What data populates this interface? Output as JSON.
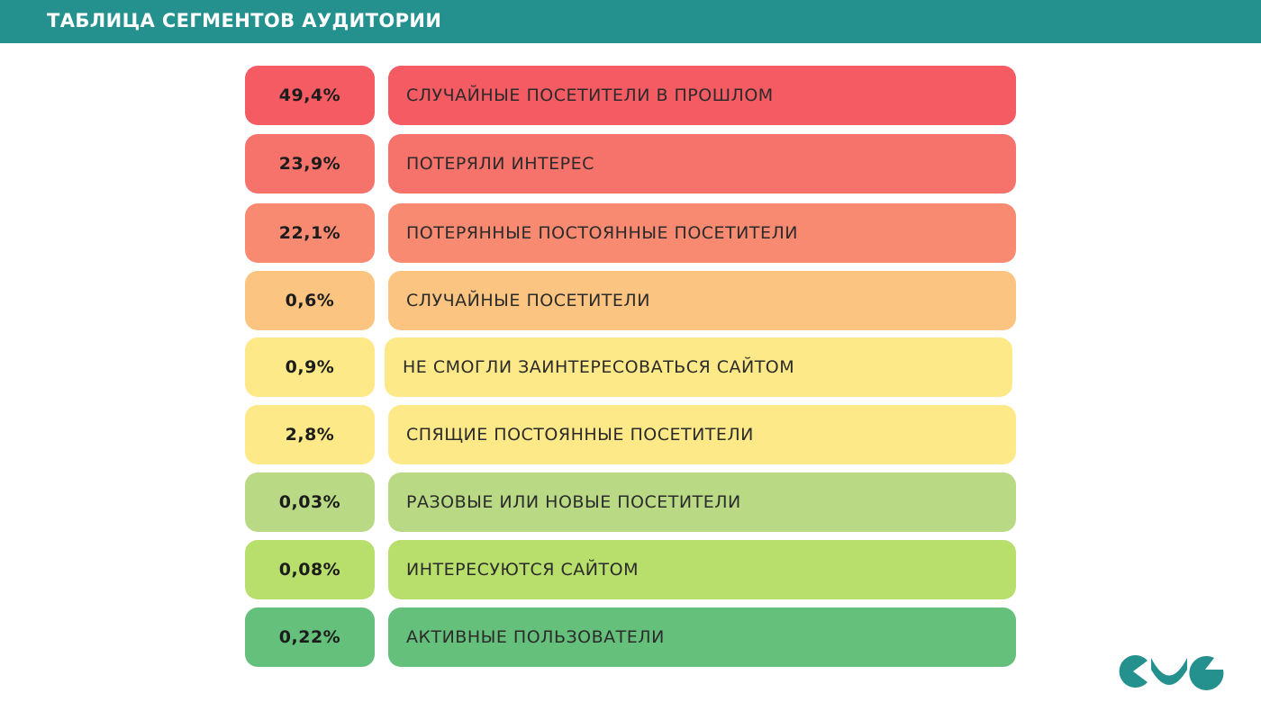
{
  "header": {
    "title": "ТАБЛИЦА СЕГМЕНТОВ АУДИТОРИИ",
    "background_color": "#24918f"
  },
  "logo": {
    "icon": "brand-logo",
    "color": "#24918f"
  },
  "chart_data": {
    "type": "table",
    "title": "ТАБЛИЦА СЕГМЕНТОВ АУДИТОРИИ",
    "rows": [
      {
        "value": "49,4%",
        "label": "СЛУЧАЙНЫЕ ПОСЕТИТЕЛИ В ПРОШЛОМ",
        "color": "#f45b62"
      },
      {
        "value": "23,9%",
        "label": "ПОТЕРЯЛИ ИНТЕРЕС",
        "color": "#f5736b"
      },
      {
        "value": "22,1%",
        "label": "ПОТЕРЯННЫЕ ПОСТОЯННЫЕ ПОСЕТИТЕЛИ",
        "color": "#f98a72"
      },
      {
        "value": "0,6%",
        "label": "СЛУЧАЙНЫЕ ПОСЕТИТЕЛИ",
        "color": "#fbc480"
      },
      {
        "value": "0,9%",
        "label": "НЕ СМОГЛИ ЗАИНТЕРЕСОВАТЬСЯ САЙТОМ",
        "color": "#fde987"
      },
      {
        "value": "2,8%",
        "label": "СПЯЩИЕ ПОСТОЯННЫЕ ПОСЕТИТЕЛИ",
        "color": "#fde987"
      },
      {
        "value": "0,03%",
        "label": "РАЗОВЫЕ ИЛИ НОВЫЕ ПОСЕТИТЕЛИ",
        "color": "#b9d985"
      },
      {
        "value": "0,08%",
        "label": "ИНТЕРЕСУЮТСЯ САЙТОМ",
        "color": "#b8de6b"
      },
      {
        "value": "0,22%",
        "label": "АКТИВНЫЕ ПОЛЬЗОВАТЕЛИ",
        "color": "#64c07b"
      }
    ]
  }
}
